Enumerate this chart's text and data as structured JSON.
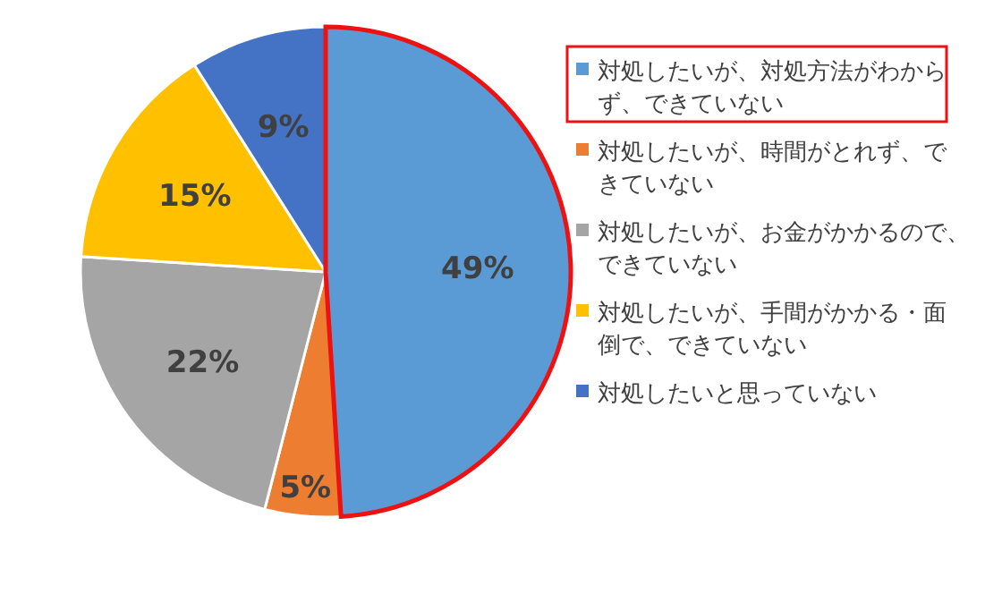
{
  "chart_data": {
    "type": "pie",
    "categories": [
      "対処したいが、対処方法がわからず、できていない",
      "対処したいが、時間がとれず、できていない",
      "対処したいが、お金がかかるので、できていない",
      "対処したいが、手間がかかる・面倒で、できていない",
      "対処したいと思っていない"
    ],
    "values": [
      49,
      5,
      22,
      15,
      9
    ],
    "colors": [
      "#5b9bd5",
      "#ed7d31",
      "#a5a5a5",
      "#ffc000",
      "#4472c4"
    ],
    "value_labels": [
      "49%",
      "5%",
      "22%",
      "15%",
      "9%"
    ],
    "legend": "right"
  }
}
